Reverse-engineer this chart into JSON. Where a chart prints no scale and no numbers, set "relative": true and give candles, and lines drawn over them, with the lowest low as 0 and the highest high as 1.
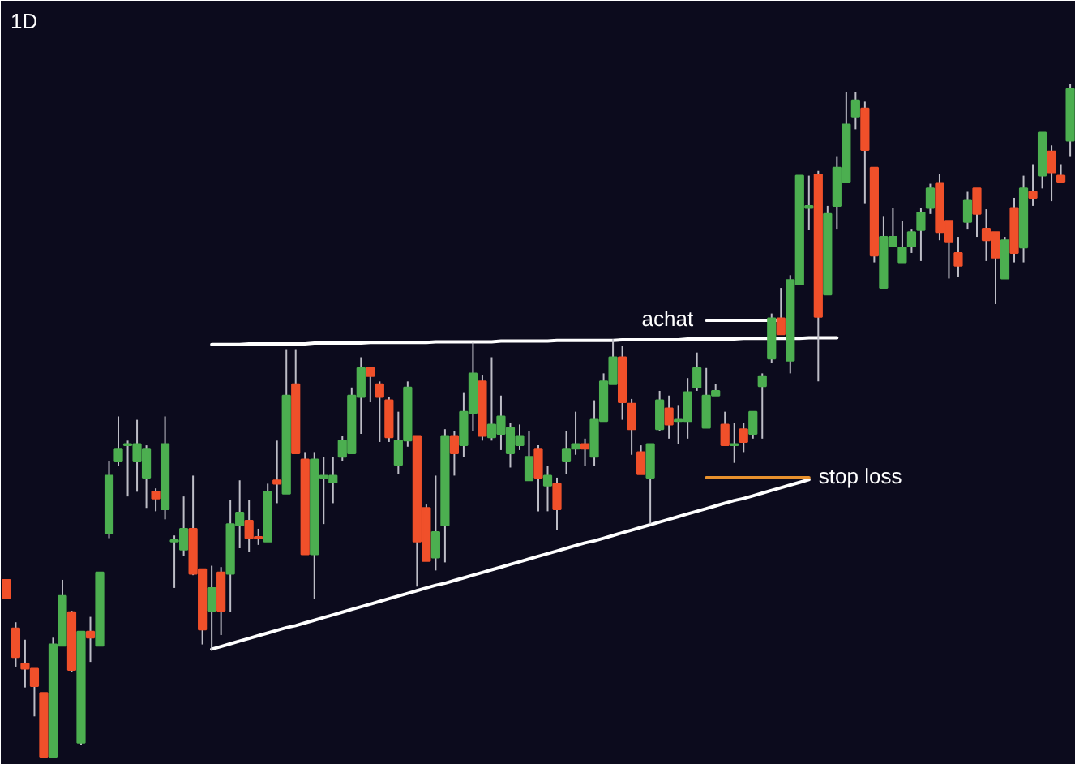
{
  "chart_data": {
    "type": "candlestick",
    "title": "1D",
    "relative": true,
    "categories": [
      null,
      null,
      null,
      null,
      null,
      null,
      null,
      null,
      null,
      null,
      null,
      null,
      null,
      null,
      null,
      null,
      null,
      null,
      null,
      null,
      null,
      null,
      null,
      null,
      null,
      null,
      null,
      null,
      null,
      null,
      null,
      null,
      null,
      null,
      null,
      null,
      null,
      null,
      null,
      null,
      null,
      null,
      null,
      null,
      null,
      null,
      null,
      null,
      null,
      null,
      null,
      null,
      null,
      null,
      null,
      null,
      null,
      null,
      null,
      null,
      null,
      null,
      null,
      null,
      null,
      null,
      null,
      null,
      null,
      null,
      null,
      null,
      null,
      null,
      null,
      null,
      null,
      null,
      null,
      null,
      null,
      null,
      null,
      null,
      null,
      null,
      null,
      null,
      null,
      null,
      null,
      null,
      null,
      null,
      null,
      null,
      null,
      null,
      null,
      null,
      null,
      null,
      null,
      null,
      null,
      null,
      null,
      null,
      null,
      null,
      null,
      null,
      null,
      null,
      null
    ],
    "ohlc": [
      [
        0.263,
        0.263,
        0.236,
        0.236
      ],
      [
        0.191,
        0.2,
        0.134,
        0.148
      ],
      [
        0.138,
        0.174,
        0.103,
        0.131
      ],
      [
        0.131,
        0.131,
        0.06,
        0.105
      ],
      [
        0.095,
        0.095,
        0,
        0
      ],
      [
        0,
        0.177,
        0,
        0.167
      ],
      [
        0.165,
        0.263,
        0.165,
        0.239
      ],
      [
        0.215,
        0.217,
        0.126,
        0.129
      ],
      [
        0.021,
        0.186,
        0.017,
        0.186
      ],
      [
        0.186,
        0.208,
        0.141,
        0.177
      ],
      [
        0.165,
        0.274,
        0.165,
        0.274
      ],
      [
        0.332,
        0.439,
        0.325,
        0.418
      ],
      [
        0.439,
        0.506,
        0.432,
        0.458
      ],
      [
        0.463,
        0.47,
        0.387,
        0.465
      ],
      [
        0.439,
        0.501,
        0.394,
        0.465
      ],
      [
        0.415,
        0.463,
        0.37,
        0.458
      ],
      [
        0.394,
        0.399,
        0.365,
        0.384
      ],
      [
        0.368,
        0.506,
        0.353,
        0.465
      ],
      [
        0.32,
        0.329,
        0.251,
        0.322
      ],
      [
        0.308,
        0.387,
        0.298,
        0.339
      ],
      [
        0.339,
        0.418,
        0.27,
        0.272
      ],
      [
        0.279,
        0.279,
        0.167,
        0.189
      ],
      [
        0.217,
        0.284,
        0.158,
        0.251
      ],
      [
        0.274,
        0.282,
        0.181,
        0.217
      ],
      [
        0.272,
        0.382,
        0.215,
        0.346
      ],
      [
        0.344,
        0.411,
        0.31,
        0.363
      ],
      [
        0.351,
        0.382,
        0.305,
        0.325
      ],
      [
        0.327,
        0.339,
        0.315,
        0.325
      ],
      [
        0.32,
        0.406,
        0.32,
        0.394
      ],
      [
        0.411,
        0.47,
        0.377,
        0.406
      ],
      [
        0.391,
        0.606,
        0.391,
        0.537
      ],
      [
        0.554,
        0.606,
        0.451,
        0.451
      ],
      [
        0.442,
        0.453,
        0.301,
        0.301
      ],
      [
        0.301,
        0.453,
        0.234,
        0.442
      ],
      [
        0.415,
        0.446,
        0.346,
        0.418
      ],
      [
        0.408,
        0.446,
        0.377,
        0.418
      ],
      [
        0.446,
        0.477,
        0.439,
        0.47
      ],
      [
        0.451,
        0.549,
        0.451,
        0.537
      ],
      [
        0.535,
        0.594,
        0.48,
        0.578
      ],
      [
        0.578,
        0.578,
        0.527,
        0.566
      ],
      [
        0.554,
        0.558,
        0.468,
        0.535
      ],
      [
        0.53,
        0.535,
        0.468,
        0.475
      ],
      [
        0.434,
        0.513,
        0.42,
        0.47
      ],
      [
        0.47,
        0.558,
        0.461,
        0.549
      ],
      [
        0.477,
        0.477,
        0.253,
        0.32
      ],
      [
        0.37,
        0.375,
        0.291,
        0.291
      ],
      [
        0.296,
        0.418,
        0.277,
        0.334
      ],
      [
        0.344,
        0.487,
        0.289,
        0.477
      ],
      [
        0.477,
        0.484,
        0.418,
        0.451
      ],
      [
        0.463,
        0.542,
        0.446,
        0.513
      ],
      [
        0.511,
        0.616,
        0.484,
        0.57
      ],
      [
        0.558,
        0.568,
        0.47,
        0.477
      ],
      [
        0.475,
        0.594,
        0.47,
        0.494
      ],
      [
        0.48,
        0.537,
        0.456,
        0.506
      ],
      [
        0.451,
        0.496,
        0.43,
        0.489
      ],
      [
        0.463,
        0.494,
        0.456,
        0.477
      ],
      [
        0.411,
        0.484,
        0.411,
        0.446
      ],
      [
        0.458,
        0.463,
        0.365,
        0.415
      ],
      [
        0.403,
        0.432,
        0.365,
        0.418
      ],
      [
        0.406,
        0.415,
        0.337,
        0.368
      ],
      [
        0.439,
        0.484,
        0.42,
        0.458
      ],
      [
        0.458,
        0.513,
        0.449,
        0.465
      ],
      [
        0.465,
        0.473,
        0.432,
        0.458
      ],
      [
        0.446,
        0.53,
        0.432,
        0.501
      ],
      [
        0.499,
        0.57,
        0.499,
        0.558
      ],
      [
        0.554,
        0.621,
        0.554,
        0.594
      ],
      [
        0.594,
        0.611,
        0.501,
        0.527
      ],
      [
        0.525,
        0.532,
        0.449,
        0.487
      ],
      [
        0.453,
        0.463,
        0.42,
        0.42
      ],
      [
        0.415,
        0.465,
        0.346,
        0.465
      ],
      [
        0.487,
        0.544,
        0.484,
        0.53
      ],
      [
        0.518,
        0.537,
        0.473,
        0.494
      ],
      [
        0.499,
        0.523,
        0.465,
        0.501
      ],
      [
        0.499,
        0.563,
        0.473,
        0.542
      ],
      [
        0.549,
        0.601,
        0.544,
        0.578
      ],
      [
        0.489,
        0.578,
        0.489,
        0.537
      ],
      [
        0.537,
        0.554,
        0.537,
        0.544
      ],
      [
        0.494,
        0.513,
        0.463,
        0.463
      ],
      [
        0.463,
        0.496,
        0.437,
        0.465
      ],
      [
        0.487,
        0.496,
        0.453,
        0.468
      ],
      [
        0.48,
        0.513,
        0.473,
        0.513
      ],
      [
        0.551,
        0.57,
        0.473,
        0.566
      ],
      [
        0.592,
        0.659,
        0.585,
        0.652
      ],
      [
        0.652,
        0.697,
        0.628,
        0.628
      ],
      [
        0.589,
        0.716,
        0.57,
        0.709
      ],
      [
        0.702,
        0.864,
        0.702,
        0.864
      ],
      [
        0.816,
        0.864,
        0.783,
        0.819
      ],
      [
        0.866,
        0.871,
        0.558,
        0.654
      ],
      [
        0.687,
        0.819,
        0.687,
        0.807
      ],
      [
        0.819,
        0.893,
        0.785,
        0.876
      ],
      [
        0.854,
        0.988,
        0.854,
        0.94
      ],
      [
        0.952,
        0.988,
        0.933,
        0.976
      ],
      [
        0.964,
        0.974,
        0.823,
        0.902
      ],
      [
        0.876,
        0.876,
        0.735,
        0.745
      ],
      [
        0.697,
        0.804,
        0.697,
        0.773
      ],
      [
        0.759,
        0.816,
        0.759,
        0.773
      ],
      [
        0.735,
        0.797,
        0.735,
        0.757
      ],
      [
        0.759,
        0.785,
        0.749,
        0.78
      ],
      [
        0.783,
        0.816,
        0.737,
        0.809
      ],
      [
        0.816,
        0.852,
        0.807,
        0.845
      ],
      [
        0.852,
        0.866,
        0.768,
        0.78
      ],
      [
        0.797,
        0.797,
        0.711,
        0.766
      ],
      [
        0.749,
        0.773,
        0.714,
        0.73
      ],
      [
        0.795,
        0.84,
        0.785,
        0.828
      ],
      [
        0.845,
        0.845,
        0.773,
        0.807
      ],
      [
        0.785,
        0.814,
        0.737,
        0.768
      ],
      [
        0.78,
        0.78,
        0.673,
        0.742
      ],
      [
        0.711,
        0.773,
        0.711,
        0.768
      ],
      [
        0.816,
        0.831,
        0.735,
        0.749
      ],
      [
        0.757,
        0.864,
        0.735,
        0.845
      ],
      [
        0.84,
        0.881,
        0.819,
        0.831
      ],
      [
        0.864,
        0.928,
        0.845,
        0.928
      ],
      [
        0.9,
        0.909,
        0.826,
        0.869
      ],
      [
        0.864,
        0.881,
        0.854,
        0.854
      ],
      [
        0.916,
        1.0,
        0.893,
        0.993
      ]
    ],
    "colors": [
      "#f0502a",
      "#f0502a",
      "#f0502a",
      "#f0502a",
      "#f0502a",
      "#4caf50",
      "#4caf50",
      "#f0502a",
      "#4caf50",
      "#f0502a",
      "#4caf50",
      "#4caf50",
      "#4caf50",
      "#4caf50",
      "#4caf50",
      "#4caf50",
      "#f0502a",
      "#4caf50",
      "#4caf50",
      "#4caf50",
      "#f0502a",
      "#f0502a",
      "#4caf50",
      "#f0502a",
      "#4caf50",
      "#4caf50",
      "#f0502a",
      "#f0502a",
      "#4caf50",
      "#f0502a",
      "#4caf50",
      "#f0502a",
      "#f0502a",
      "#4caf50",
      "#4caf50",
      "#4caf50",
      "#4caf50",
      "#4caf50",
      "#4caf50",
      "#f0502a",
      "#f0502a",
      "#f0502a",
      "#4caf50",
      "#4caf50",
      "#f0502a",
      "#f0502a",
      "#4caf50",
      "#4caf50",
      "#f0502a",
      "#4caf50",
      "#4caf50",
      "#f0502a",
      "#4caf50",
      "#4caf50",
      "#4caf50",
      "#4caf50",
      "#4caf50",
      "#f0502a",
      "#4caf50",
      "#f0502a",
      "#4caf50",
      "#4caf50",
      "#f0502a",
      "#4caf50",
      "#4caf50",
      "#4caf50",
      "#f0502a",
      "#f0502a",
      "#f0502a",
      "#4caf50",
      "#4caf50",
      "#f0502a",
      "#4caf50",
      "#4caf50",
      "#4caf50",
      "#4caf50",
      "#4caf50",
      "#f0502a",
      "#4caf50",
      "#f0502a",
      "#4caf50",
      "#4caf50",
      "#4caf50",
      "#f0502a",
      "#4caf50",
      "#4caf50",
      "#4caf50",
      "#f0502a",
      "#4caf50",
      "#4caf50",
      "#4caf50",
      "#4caf50",
      "#f0502a",
      "#f0502a",
      "#4caf50",
      "#4caf50",
      "#4caf50",
      "#4caf50",
      "#4caf50",
      "#4caf50",
      "#f0502a",
      "#f0502a",
      "#f0502a",
      "#4caf50",
      "#f0502a",
      "#f0502a",
      "#f0502a",
      "#4caf50",
      "#f0502a",
      "#4caf50",
      "#f0502a",
      "#4caf50",
      "#f0502a",
      "#f0502a",
      "#4caf50"
    ],
    "series": [
      {
        "type": "line",
        "color": "#ffffff",
        "values": [
          null,
          null,
          null,
          null,
          null,
          null,
          null,
          null,
          null,
          null,
          null,
          null,
          null,
          null,
          null,
          null,
          null,
          null,
          null,
          null,
          null,
          null,
          0.613,
          0.613,
          0.613,
          0.613,
          0.614,
          0.614,
          0.614,
          0.614,
          0.614,
          0.614,
          0.614,
          0.615,
          0.615,
          0.615,
          0.615,
          0.615,
          0.615,
          0.616,
          0.616,
          0.616,
          0.616,
          0.616,
          0.616,
          0.616,
          0.617,
          0.617,
          0.617,
          0.617,
          0.617,
          0.617,
          0.617,
          0.618,
          0.618,
          0.618,
          0.618,
          0.618,
          0.618,
          0.619,
          0.619,
          0.619,
          0.619,
          0.619,
          0.619,
          0.619,
          0.62,
          0.62,
          0.62,
          0.62,
          0.62,
          0.62,
          0.62,
          0.621,
          0.621,
          0.621,
          0.621,
          0.621,
          0.621,
          0.622,
          0.622,
          0.622,
          0.622,
          0.622,
          0.622,
          0.622,
          0.623,
          0.623,
          0.623,
          0.623,
          null,
          null,
          null,
          null,
          null,
          null,
          null,
          null,
          null,
          null,
          null,
          null,
          null,
          null,
          null,
          null,
          null,
          null,
          null,
          null,
          null,
          null,
          null,
          null,
          null
        ]
      },
      {
        "type": "line",
        "color": "#ffffff",
        "values": [
          null,
          null,
          null,
          null,
          null,
          null,
          null,
          null,
          null,
          null,
          null,
          null,
          null,
          null,
          null,
          null,
          null,
          null,
          null,
          null,
          null,
          null,
          0.16,
          0.164,
          0.168,
          0.172,
          0.176,
          0.18,
          0.184,
          0.188,
          0.192,
          0.195,
          0.199,
          0.203,
          0.207,
          0.211,
          0.215,
          0.219,
          0.223,
          0.227,
          0.231,
          0.235,
          0.239,
          0.243,
          0.247,
          0.251,
          0.255,
          0.258,
          0.262,
          0.266,
          0.27,
          0.274,
          0.278,
          0.282,
          0.286,
          0.29,
          0.294,
          0.298,
          0.302,
          0.306,
          0.31,
          0.314,
          0.318,
          0.321,
          0.325,
          0.329,
          0.333,
          0.337,
          0.341,
          0.345,
          0.349,
          0.353,
          0.357,
          0.361,
          0.365,
          0.369,
          0.373,
          0.377,
          0.381,
          0.384,
          0.388,
          0.392,
          0.396,
          0.4,
          0.404,
          0.408,
          0.412,
          null,
          null,
          null,
          null,
          null,
          null,
          null,
          null,
          null,
          null,
          null,
          null,
          null,
          null,
          null,
          null,
          null,
          null,
          null,
          null,
          null,
          null,
          null,
          null,
          null,
          null,
          null,
          null
        ]
      },
      {
        "type": "line",
        "name": "achat",
        "color": "#ffffff",
        "values": [
          null,
          null,
          null,
          null,
          null,
          null,
          null,
          null,
          null,
          null,
          null,
          null,
          null,
          null,
          null,
          null,
          null,
          null,
          null,
          null,
          null,
          null,
          null,
          null,
          null,
          null,
          null,
          null,
          null,
          null,
          null,
          null,
          null,
          null,
          null,
          null,
          null,
          null,
          null,
          null,
          null,
          null,
          null,
          null,
          null,
          null,
          null,
          null,
          null,
          null,
          null,
          null,
          null,
          null,
          null,
          null,
          null,
          null,
          null,
          null,
          null,
          null,
          null,
          null,
          null,
          null,
          null,
          null,
          null,
          null,
          null,
          null,
          null,
          null,
          null,
          0.649,
          0.649,
          0.649,
          0.649,
          0.649,
          0.649,
          0.649,
          0.649,
          0.649,
          null,
          null,
          null,
          null,
          null,
          null,
          null,
          null,
          null,
          null,
          null,
          null,
          null,
          null,
          null,
          null,
          null,
          null,
          null,
          null,
          null,
          null,
          null,
          null,
          null,
          null,
          null,
          null,
          null,
          null,
          null
        ]
      },
      {
        "type": "line",
        "name": "stop loss",
        "color": "#e8912d",
        "values": [
          null,
          null,
          null,
          null,
          null,
          null,
          null,
          null,
          null,
          null,
          null,
          null,
          null,
          null,
          null,
          null,
          null,
          null,
          null,
          null,
          null,
          null,
          null,
          null,
          null,
          null,
          null,
          null,
          null,
          null,
          null,
          null,
          null,
          null,
          null,
          null,
          null,
          null,
          null,
          null,
          null,
          null,
          null,
          null,
          null,
          null,
          null,
          null,
          null,
          null,
          null,
          null,
          null,
          null,
          null,
          null,
          null,
          null,
          null,
          null,
          null,
          null,
          null,
          null,
          null,
          null,
          null,
          null,
          null,
          null,
          null,
          null,
          null,
          null,
          null,
          0.415,
          0.415,
          0.415,
          0.415,
          0.415,
          0.415,
          0.415,
          0.415,
          0.415,
          0.415,
          0.415,
          0.415,
          null,
          null,
          null,
          null,
          null,
          null,
          null,
          null,
          null,
          null,
          null,
          null,
          null,
          null,
          null,
          null,
          null,
          null,
          null,
          null,
          null,
          null,
          null,
          null,
          null,
          null,
          null,
          null
        ]
      }
    ]
  }
}
